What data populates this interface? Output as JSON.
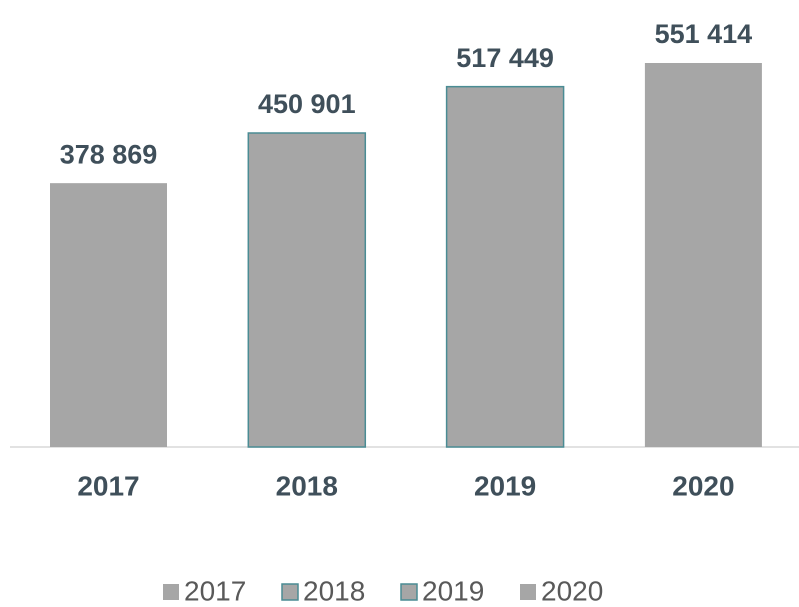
{
  "chart_data": {
    "type": "bar",
    "categories": [
      "2017",
      "2018",
      "2019",
      "2020"
    ],
    "values": [
      378869,
      450901,
      517449,
      551414
    ],
    "value_labels": [
      "378 869",
      "450 901",
      "517 449",
      "551 414"
    ],
    "color": "#a6a6a6",
    "edge_colors": [
      null,
      "#4a8c94",
      "#4a8c94",
      null
    ],
    "legend": "bottom"
  }
}
